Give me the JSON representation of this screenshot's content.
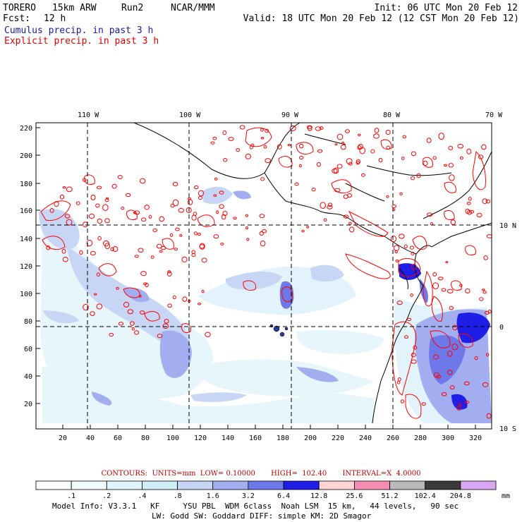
{
  "header": {
    "model": "TORERO",
    "grid": "15km ARW",
    "run": "Run2",
    "org": "NCAR/MMM",
    "init": "Init: 06 UTC Mon 20 Feb 12",
    "fcst_label": "Fcst:",
    "fcst_value": "12 h",
    "valid": "Valid: 18 UTC Mon 20 Feb 12 (12 CST Mon 20 Feb 12)",
    "cumulus": "Cumulus precip. in past 3 h",
    "explicit": "Explicit precip. in past 3 h"
  },
  "colors": {
    "cumulus_text": "#1a1aa6",
    "explicit_text": "#e00000",
    "contour": "#ff0000",
    "grid": "#000000"
  },
  "map": {
    "lon_labels": [
      "110 W",
      "100 W",
      "90 W",
      "80 W",
      "70 W"
    ],
    "lat_labels": [
      "10 N",
      "0",
      "10 S"
    ],
    "y_ticks": [
      "220",
      "200",
      "180",
      "160",
      "140",
      "120",
      "100",
      "80",
      "60",
      "40",
      "20"
    ],
    "x_ticks": [
      "20",
      "40",
      "60",
      "80",
      "100",
      "120",
      "140",
      "160",
      "180",
      "200",
      "220",
      "240",
      "260",
      "280",
      "300",
      "320"
    ]
  },
  "contour_info": {
    "text": "CONTOURS:  UNITS=mm  LOW= 0.10000       HIGH=  102.40       INTERVAL=X  4.0000"
  },
  "colorbar": {
    "labels": [
      ".1",
      ".2",
      ".4",
      ".8",
      "1.6",
      "3.2",
      "6.4",
      "12.8",
      "25.6",
      "51.2",
      "102.4",
      "204.8"
    ],
    "units": "mm",
    "colors": [
      "#ffffff",
      "#f2fbff",
      "#e0f5fb",
      "#cfeef8",
      "#c8d6f5",
      "#a3aef0",
      "#6f78e8",
      "#1e1ee6",
      "#ffd4d4",
      "#f58cb4",
      "#b9b9b9",
      "#3a3a3a",
      "#d9a6f0"
    ]
  },
  "footer": {
    "line1": "Model Info: V3.3.1   KF     YSU PBL  WDM 6class  Noah LSM  15 km,   44 levels,   90 sec",
    "line2": "LW: Godd SW: Goddard DIFF: simple KM: 2D Smagor"
  }
}
